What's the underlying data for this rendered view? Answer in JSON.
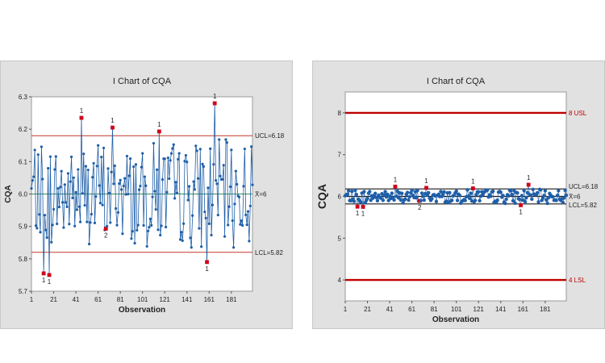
{
  "chart_data": [
    {
      "type": "line",
      "title": "I Chart of CQA",
      "xlabel": "Observation",
      "ylabel": "CQA",
      "xlim": [
        1,
        200
      ],
      "ylim": [
        5.7,
        6.3
      ],
      "x_ticks": [
        "1",
        "21",
        "41",
        "61",
        "81",
        "101",
        "121",
        "141",
        "161",
        "181"
      ],
      "y_ticks": [
        "5.7",
        "5.8",
        "5.9",
        "6.0",
        "6.1",
        "6.2",
        "6.3"
      ],
      "limits": {
        "ucl": 6.18,
        "center": 6.0,
        "lcl": 5.82
      },
      "limit_labels": {
        "ucl": "UCL=6.18",
        "center": "X̄=6",
        "lcl": "LCL=5.82"
      },
      "colors": {
        "series": "#1f5fa8",
        "point": "#1f5fa8",
        "limit_line": "#c0392b",
        "center_line": "#3a8a5c",
        "flag": "#d0021b"
      },
      "seed": 7,
      "n": 200,
      "out_of_control": [
        {
          "x": 12,
          "y": 5.755,
          "label": "1"
        },
        {
          "x": 17,
          "y": 5.75,
          "label": "1"
        },
        {
          "x": 46,
          "y": 6.235,
          "label": "1"
        },
        {
          "x": 68,
          "y": 5.893,
          "label": "2"
        },
        {
          "x": 74,
          "y": 6.205,
          "label": "1"
        },
        {
          "x": 116,
          "y": 6.193,
          "label": "1"
        },
        {
          "x": 159,
          "y": 5.79,
          "label": "1"
        },
        {
          "x": 166,
          "y": 6.28,
          "label": "1"
        }
      ]
    },
    {
      "type": "line",
      "title": "I Chart of CQA",
      "xlabel": "Observation",
      "ylabel": "CQA",
      "xlim": [
        1,
        200
      ],
      "ylim": [
        3.5,
        8.5
      ],
      "x_ticks": [
        "1",
        "21",
        "41",
        "61",
        "81",
        "101",
        "121",
        "141",
        "161",
        "181"
      ],
      "y_ticks": [
        "4",
        "5",
        "6",
        "7",
        "8"
      ],
      "limits": {
        "ucl": 6.18,
        "center": 6.0,
        "lcl": 5.82,
        "usl": 8,
        "lsl": 4
      },
      "limit_labels": {
        "ucl": "UCL=6.18",
        "center": "X̄=6",
        "lcl": "LCL=5.82",
        "usl": "8 USL",
        "lsl": "4 LSL"
      },
      "colors": {
        "series": "#1f5fa8",
        "point": "#1f5fa8",
        "limit_line": "#1a1a1a",
        "spec_line": "#c00000",
        "flag": "#d0021b"
      },
      "seed": 7,
      "n": 200,
      "out_of_control": [
        {
          "x": 12,
          "y": 5.755,
          "label": "1"
        },
        {
          "x": 17,
          "y": 5.75,
          "label": "1"
        },
        {
          "x": 46,
          "y": 6.235,
          "label": "1"
        },
        {
          "x": 68,
          "y": 5.893,
          "label": "2"
        },
        {
          "x": 74,
          "y": 6.205,
          "label": "1"
        },
        {
          "x": 116,
          "y": 6.193,
          "label": "1"
        },
        {
          "x": 159,
          "y": 5.79,
          "label": "1"
        },
        {
          "x": 166,
          "y": 6.28,
          "label": "1"
        }
      ]
    }
  ]
}
